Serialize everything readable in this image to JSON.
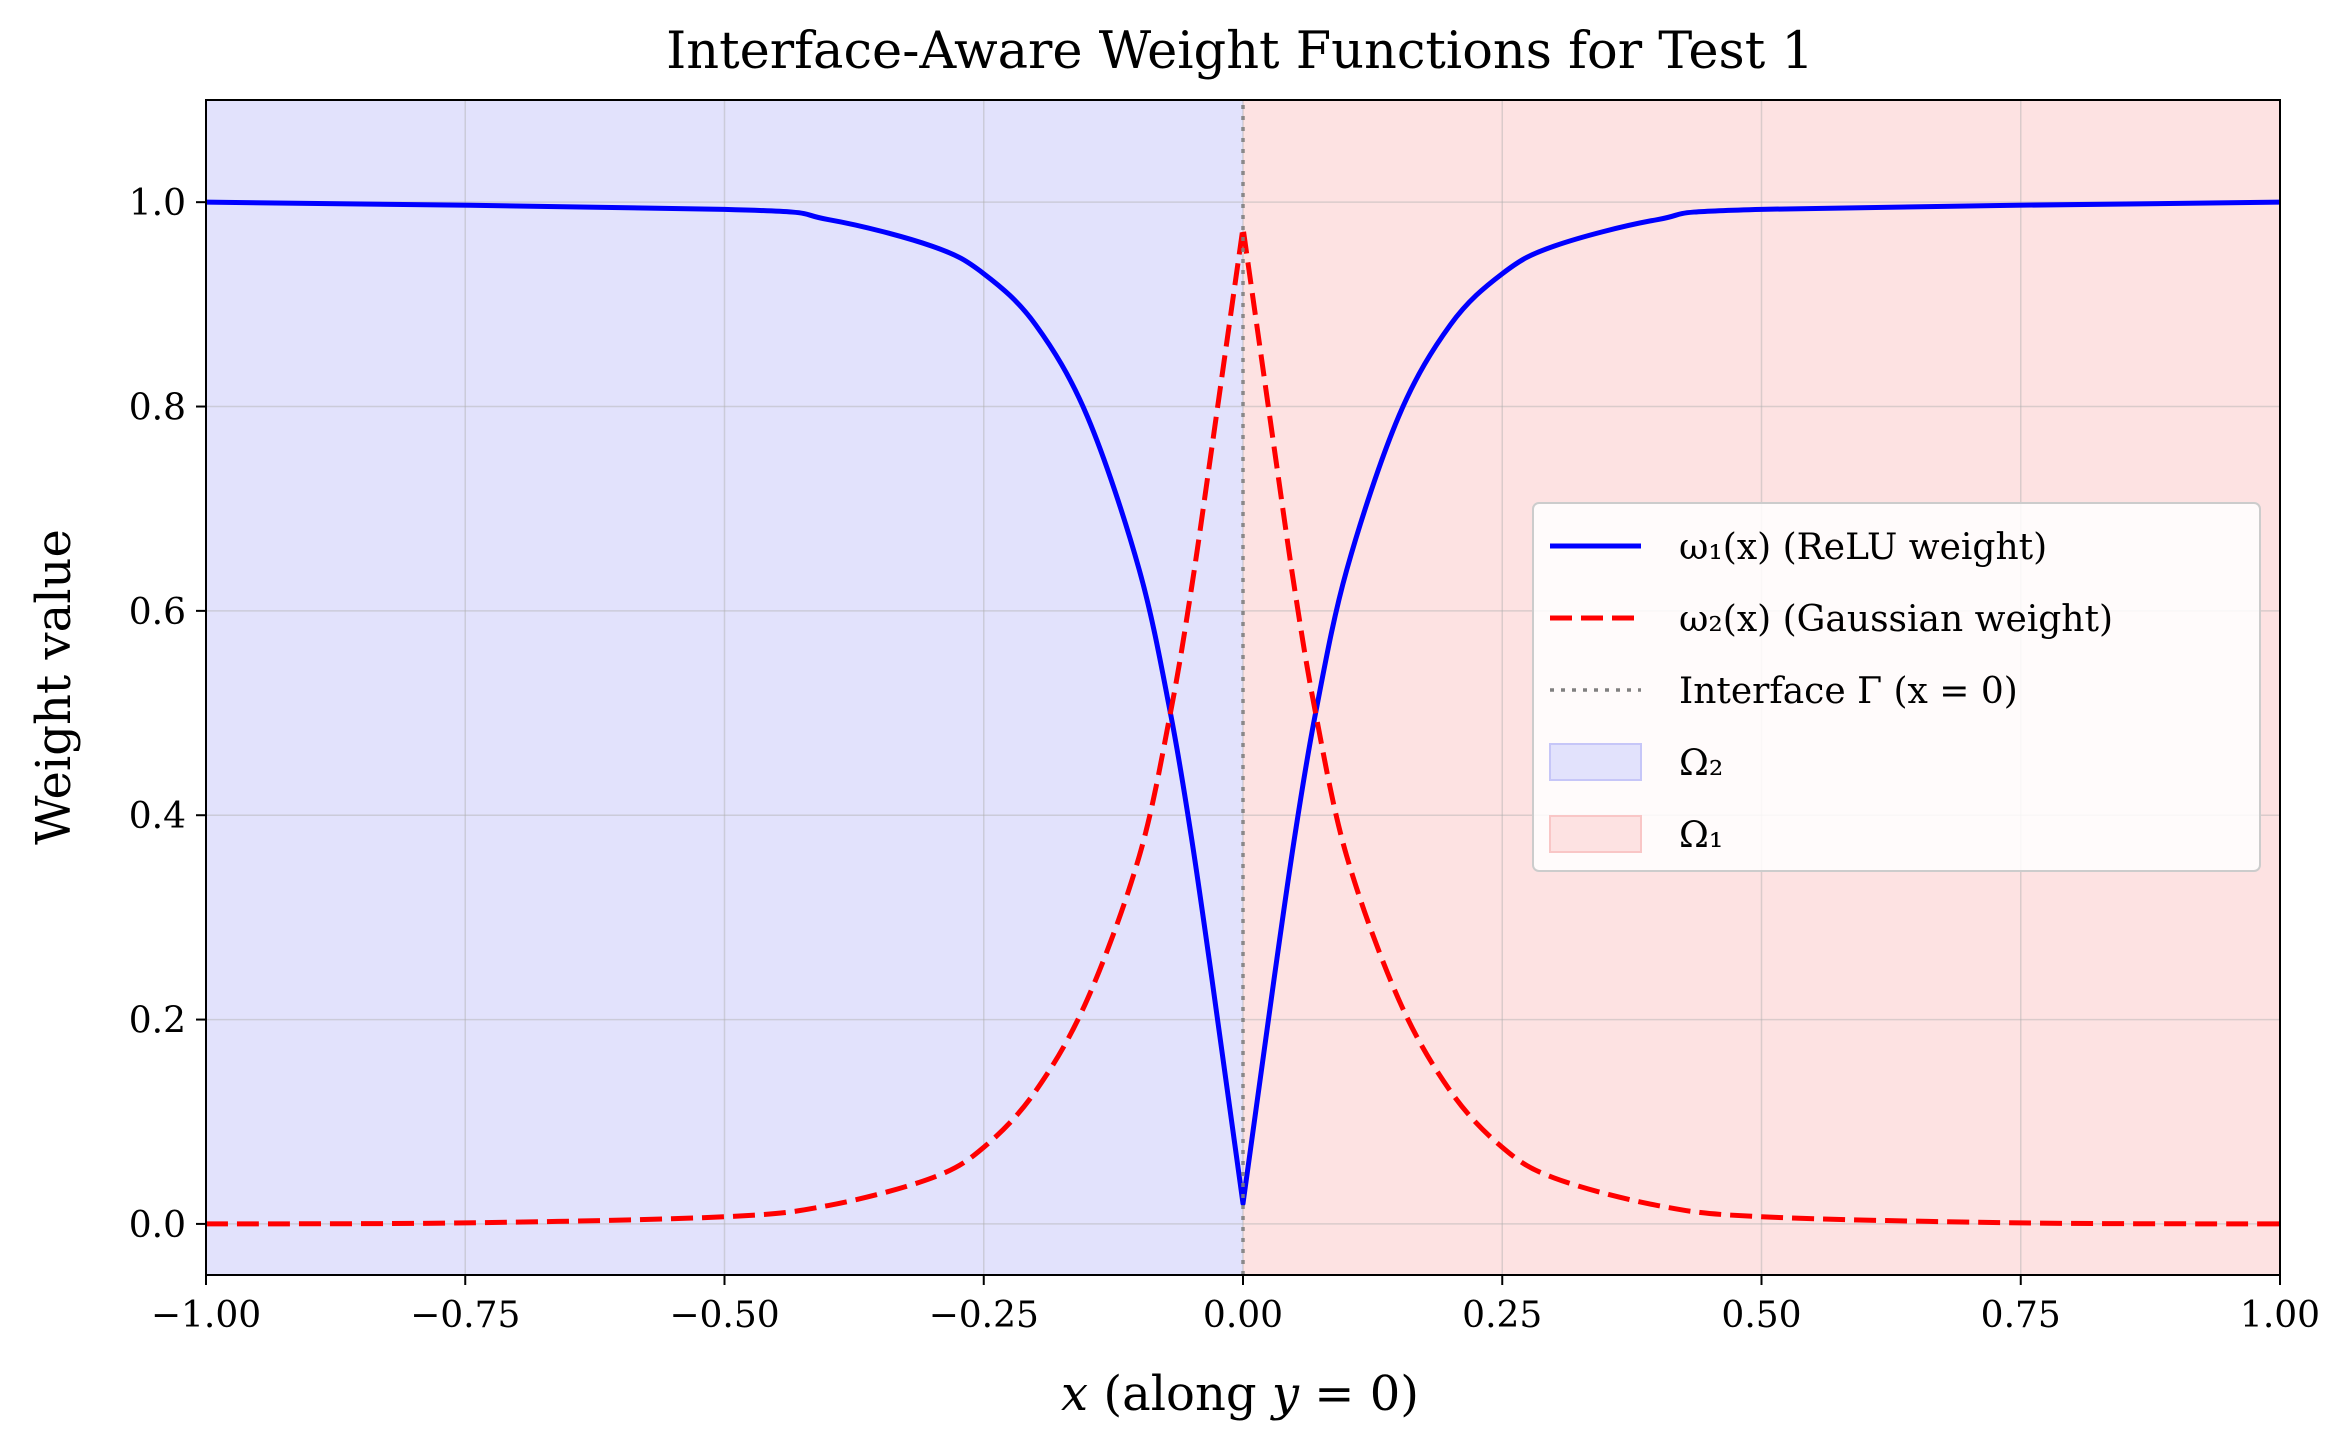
{
  "chart_data": {
    "type": "line",
    "title": "Interface-Aware Weight Functions for Test 1",
    "xlabel": "x (along y = 0)",
    "ylabel": "Weight value",
    "xlim": [
      -1.0,
      1.0
    ],
    "ylim": [
      -0.05,
      1.1
    ],
    "grid": true,
    "legend_position": "center-right",
    "x_ticks": [
      -1.0,
      -0.75,
      -0.5,
      -0.25,
      0.0,
      0.25,
      0.5,
      0.75,
      1.0
    ],
    "x_tick_labels": [
      "−1.00",
      "−0.75",
      "−0.50",
      "−0.25",
      "0.00",
      "0.25",
      "0.50",
      "0.75",
      "1.00"
    ],
    "y_ticks": [
      0.0,
      0.2,
      0.4,
      0.6,
      0.8,
      1.0
    ],
    "y_tick_labels": [
      "0.0",
      "0.2",
      "0.4",
      "0.6",
      "0.8",
      "1.0"
    ],
    "regions": [
      {
        "name": "Ω₂",
        "x_range": [
          -1.0,
          0.0
        ],
        "color": "#e2e2fc"
      },
      {
        "name": "Ω₁",
        "x_range": [
          0.0,
          1.0
        ],
        "color": "#fde2e2"
      }
    ],
    "series": [
      {
        "name": "ω₁(x) (ReLU weight)",
        "style": "solid",
        "color": "#0000ff",
        "x": [
          -1.0,
          -0.5,
          -0.4,
          -0.3,
          -0.25,
          -0.2,
          -0.15,
          -0.1,
          -0.07,
          -0.05,
          -0.03,
          0.0,
          0.03,
          0.05,
          0.07,
          0.1,
          0.15,
          0.2,
          0.25,
          0.3,
          0.4,
          0.5,
          1.0
        ],
        "y": [
          1.0,
          0.993,
          0.983,
          0.957,
          0.93,
          0.88,
          0.79,
          0.64,
          0.5,
          0.38,
          0.24,
          0.02,
          0.24,
          0.38,
          0.5,
          0.64,
          0.79,
          0.88,
          0.93,
          0.957,
          0.983,
          0.993,
          1.0
        ]
      },
      {
        "name": "ω₂(x) (Gaussian weight)",
        "style": "dashed",
        "color": "#ff0000",
        "x": [
          -1.0,
          -0.75,
          -0.5,
          -0.4,
          -0.3,
          -0.25,
          -0.2,
          -0.15,
          -0.1,
          -0.07,
          -0.05,
          -0.03,
          0.0,
          0.03,
          0.05,
          0.07,
          0.1,
          0.15,
          0.2,
          0.25,
          0.3,
          0.4,
          0.5,
          0.75,
          1.0
        ],
        "y": [
          0.0,
          0.001,
          0.007,
          0.018,
          0.045,
          0.075,
          0.13,
          0.22,
          0.36,
          0.5,
          0.62,
          0.76,
          0.975,
          0.76,
          0.62,
          0.5,
          0.36,
          0.22,
          0.13,
          0.075,
          0.045,
          0.018,
          0.007,
          0.001,
          0.0
        ]
      },
      {
        "name": "Interface Γ (x = 0)",
        "style": "dotted",
        "color": "#808080",
        "x": [
          0.0,
          0.0
        ],
        "y": [
          -0.05,
          1.1
        ]
      }
    ],
    "legend": [
      {
        "label": "ω₁(x) (ReLU weight)",
        "kind": "line-solid",
        "color": "#0000ff"
      },
      {
        "label": "ω₂(x) (Gaussian weight)",
        "kind": "line-dashed",
        "color": "#ff0000"
      },
      {
        "label": "Interface Γ (x = 0)",
        "kind": "line-dotted",
        "color": "#808080"
      },
      {
        "label": "Ω₂",
        "kind": "patch",
        "color": "#e2e2fc"
      },
      {
        "label": "Ω₁",
        "kind": "patch",
        "color": "#fde2e2"
      }
    ]
  }
}
